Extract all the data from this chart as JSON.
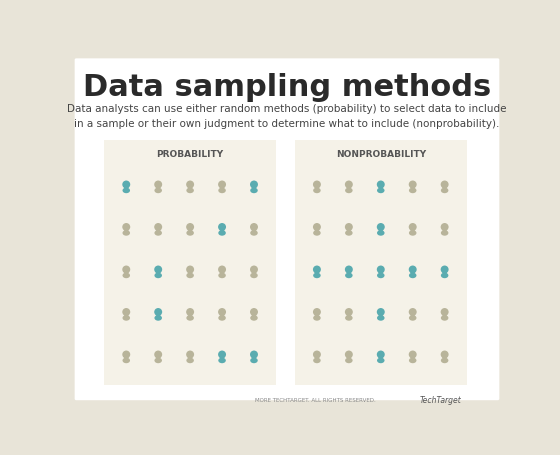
{
  "title": "Data sampling methods",
  "subtitle": "Data analysts can use either random methods (probability) to select data to include\nin a sample or their own judgment to determine what to include (nonprobability).",
  "outer_bg": "#e8e4d8",
  "card_bg": "#ffffff",
  "panel_bg": "#f5f2e8",
  "teal_color": "#5aacb0",
  "beige_color": "#b8b49a",
  "title_color": "#2a2a2a",
  "subtitle_color": "#444444",
  "label_color": "#555555",
  "panel1_label": "PROBABILITY",
  "panel2_label": "NONPROBABILITY",
  "prob_pattern": [
    [
      1,
      0,
      0,
      0,
      1
    ],
    [
      0,
      0,
      0,
      1,
      0
    ],
    [
      0,
      1,
      0,
      0,
      0
    ],
    [
      0,
      1,
      0,
      0,
      0
    ],
    [
      0,
      0,
      0,
      1,
      1
    ]
  ],
  "nonprob_pattern": [
    [
      0,
      0,
      1,
      0,
      0
    ],
    [
      0,
      0,
      1,
      0,
      0
    ],
    [
      1,
      1,
      1,
      1,
      1
    ],
    [
      0,
      0,
      1,
      0,
      0
    ],
    [
      0,
      0,
      1,
      0,
      0
    ]
  ],
  "rows": 5,
  "cols": 5,
  "footer_text": "MORE TECHTARGET. ALL RIGHTS RESERVED.",
  "footer_brand": "TechTarget"
}
